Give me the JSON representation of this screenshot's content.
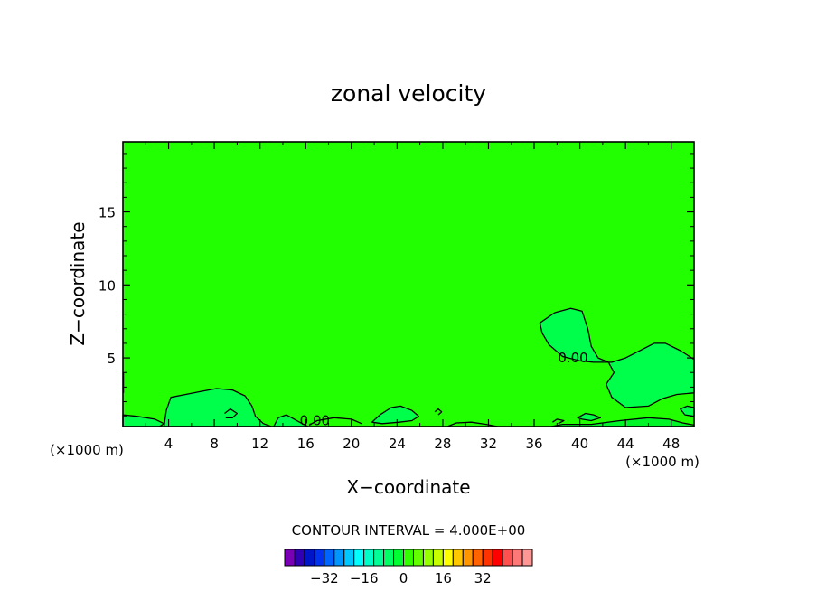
{
  "chart_data": {
    "type": "contour",
    "title": "zonal velocity",
    "xlabel": "X−coordinate",
    "ylabel": "Z−coordinate",
    "x_unit": "(×1000 m)",
    "y_unit": "(×1000 m)",
    "xlim": [
      0,
      50
    ],
    "ylim": [
      0.3,
      19.8
    ],
    "x_ticks": [
      4,
      8,
      12,
      16,
      20,
      24,
      28,
      32,
      36,
      40,
      44,
      48
    ],
    "x_tick_labels": [
      "4",
      "8",
      "12",
      "16",
      "20",
      "24",
      "28",
      "32",
      "36",
      "40",
      "44",
      "48"
    ],
    "y_ticks": [
      5,
      10,
      15
    ],
    "y_tick_labels": [
      "5",
      "10",
      "15"
    ],
    "contour_interval_text": "CONTOUR INTERVAL = 4.000E+00",
    "contour_labels": [
      {
        "text": "0.00",
        "x": 16.8,
        "y": 0.7
      },
      {
        "text": "0.00",
        "x": 39.4,
        "y": 5.0
      }
    ],
    "background_level": 0,
    "regions": [
      {
        "name": "upper-plume",
        "level": 4,
        "points": [
          [
            36.5,
            7.4
          ],
          [
            37.8,
            8.1
          ],
          [
            39.2,
            8.4
          ],
          [
            40.2,
            8.2
          ],
          [
            40.7,
            7.0
          ],
          [
            41.0,
            5.8
          ],
          [
            41.6,
            5.0
          ],
          [
            42.5,
            4.7
          ],
          [
            43.0,
            4.0
          ],
          [
            42.3,
            3.2
          ],
          [
            42.8,
            2.3
          ],
          [
            44.0,
            1.6
          ],
          [
            46.0,
            1.7
          ],
          [
            47.2,
            2.2
          ],
          [
            48.5,
            2.5
          ],
          [
            50,
            2.6
          ],
          [
            50,
            4.9
          ],
          [
            48.8,
            5.5
          ],
          [
            47.5,
            6.0
          ],
          [
            46.5,
            6.0
          ],
          [
            45.5,
            5.6
          ],
          [
            44.0,
            5.0
          ],
          [
            42.8,
            4.7
          ],
          [
            41.2,
            4.7
          ],
          [
            40.0,
            4.8
          ],
          [
            38.5,
            5.1
          ],
          [
            37.3,
            5.9
          ],
          [
            36.7,
            6.7
          ]
        ]
      },
      {
        "name": "low-left-blob",
        "level": 4,
        "points": [
          [
            3.6,
            0.3
          ],
          [
            3.8,
            1.4
          ],
          [
            4.2,
            2.3
          ],
          [
            5.5,
            2.5
          ],
          [
            6.8,
            2.7
          ],
          [
            8.2,
            2.9
          ],
          [
            9.6,
            2.8
          ],
          [
            10.7,
            2.4
          ],
          [
            11.3,
            1.7
          ],
          [
            11.6,
            1.0
          ],
          [
            12.3,
            0.5
          ],
          [
            13.0,
            0.3
          ]
        ]
      },
      {
        "name": "edge-left-blob",
        "level": 4,
        "points": [
          [
            0,
            0.3
          ],
          [
            0,
            1.1
          ],
          [
            1.2,
            1.0
          ],
          [
            2.8,
            0.8
          ],
          [
            3.6,
            0.5
          ],
          [
            3.2,
            0.3
          ]
        ]
      },
      {
        "name": "blob-14",
        "level": 4,
        "points": [
          [
            13.2,
            0.3
          ],
          [
            13.6,
            0.9
          ],
          [
            14.3,
            1.1
          ],
          [
            15.0,
            0.8
          ],
          [
            15.7,
            0.5
          ],
          [
            16.2,
            0.3
          ]
        ]
      },
      {
        "name": "blob-24",
        "level": 4,
        "points": [
          [
            21.8,
            0.6
          ],
          [
            22.5,
            1.1
          ],
          [
            23.5,
            1.6
          ],
          [
            24.3,
            1.7
          ],
          [
            25.3,
            1.4
          ],
          [
            25.9,
            1.0
          ],
          [
            25.3,
            0.7
          ],
          [
            24.2,
            0.6
          ],
          [
            22.7,
            0.5
          ]
        ]
      },
      {
        "name": "blob-40",
        "level": 4,
        "points": [
          [
            39.8,
            0.9
          ],
          [
            40.5,
            1.2
          ],
          [
            41.2,
            1.1
          ],
          [
            41.8,
            0.9
          ],
          [
            41.0,
            0.7
          ],
          [
            40.2,
            0.8
          ]
        ]
      },
      {
        "name": "blob-49",
        "level": 4,
        "points": [
          [
            48.8,
            1.5
          ],
          [
            49.4,
            1.7
          ],
          [
            50,
            1.6
          ],
          [
            50,
            1.0
          ],
          [
            49.2,
            1.1
          ]
        ]
      },
      {
        "name": "surface-layer-right",
        "level": 8,
        "points": [
          [
            37.5,
            0.3
          ],
          [
            38.5,
            0.45
          ],
          [
            41.0,
            0.45
          ],
          [
            43.5,
            0.7
          ],
          [
            46.0,
            0.9
          ],
          [
            47.8,
            0.8
          ],
          [
            49.0,
            0.55
          ],
          [
            50,
            0.4
          ],
          [
            50,
            0.3
          ]
        ]
      }
    ],
    "contour_lines": [
      {
        "name": "line-blob-8-inner",
        "points": [
          [
            8.9,
            1.2
          ],
          [
            9.4,
            1.5
          ],
          [
            10.0,
            1.2
          ],
          [
            9.6,
            0.9
          ],
          [
            9.0,
            0.9
          ]
        ]
      },
      {
        "name": "line-blob-16",
        "points": [
          [
            16.3,
            0.4
          ],
          [
            17.0,
            0.7
          ],
          [
            18.5,
            0.9
          ],
          [
            20.0,
            0.8
          ],
          [
            20.9,
            0.5
          ]
        ]
      },
      {
        "name": "line-surface-28-34",
        "points": [
          [
            28.4,
            0.3
          ],
          [
            29.2,
            0.55
          ],
          [
            30.5,
            0.6
          ],
          [
            31.8,
            0.45
          ],
          [
            32.8,
            0.3
          ]
        ]
      },
      {
        "name": "line-blob-27",
        "points": [
          [
            27.3,
            1.3
          ],
          [
            27.6,
            1.5
          ],
          [
            27.9,
            1.3
          ],
          [
            27.6,
            1.1
          ]
        ]
      },
      {
        "name": "line-blob-37",
        "points": [
          [
            37.6,
            0.6
          ],
          [
            38.0,
            0.8
          ],
          [
            38.6,
            0.7
          ],
          [
            38.1,
            0.5
          ]
        ]
      },
      {
        "name": "line-left-edge",
        "points": [
          [
            0.05,
            4.0
          ],
          [
            0.05,
            2.6
          ]
        ]
      }
    ],
    "colorbar": {
      "colors": [
        "#7a00b4",
        "#3200b4",
        "#0014c8",
        "#0032f0",
        "#0064ff",
        "#0096ff",
        "#00c8ff",
        "#00ffff",
        "#00ffc8",
        "#00ff96",
        "#00ff64",
        "#00ff32",
        "#32ff00",
        "#64ff00",
        "#96ff00",
        "#c8ff00",
        "#ffff00",
        "#ffc800",
        "#ff9600",
        "#ff6400",
        "#ff3200",
        "#ff0000",
        "#ff5050",
        "#ff7878",
        "#ff9696"
      ],
      "min": -48,
      "max": 52,
      "tick_values": [
        -32,
        -16,
        0,
        16,
        32
      ],
      "tick_labels": [
        "−32",
        "−16",
        "0",
        "16",
        "32"
      ]
    },
    "level_colors": {
      "0": "#22ff00",
      "4": "#00ff4a",
      "8": "#00f528"
    },
    "line_color": "#000000"
  }
}
